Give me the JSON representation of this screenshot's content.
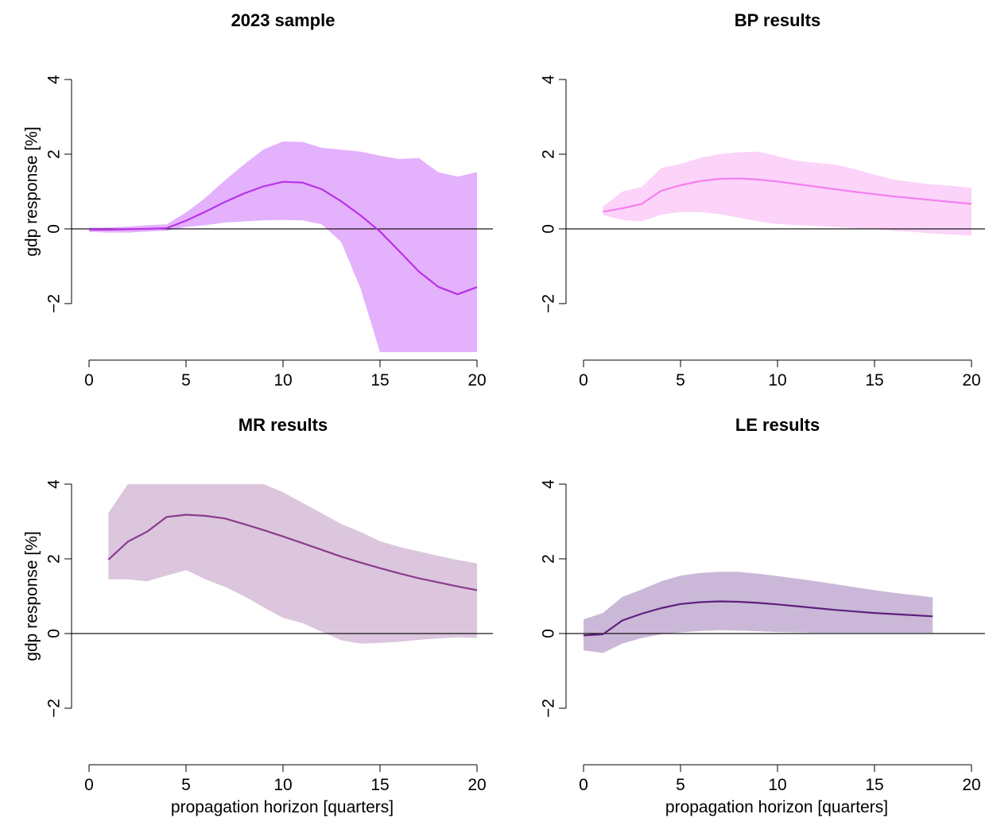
{
  "chart_data": [
    {
      "type": "area",
      "title": "2023 sample",
      "xlabel": "",
      "ylabel": "gdp response [%]",
      "xlim": [
        0,
        20
      ],
      "ylim": [
        -3.3,
        4
      ],
      "xticks": [
        0,
        5,
        10,
        15,
        20
      ],
      "yticks": [
        -2,
        0,
        2,
        4
      ],
      "hline": 0,
      "colors": {
        "line": "#b833e6",
        "band": "#e4b1fc"
      },
      "series": [
        {
          "x": [
            0,
            1,
            2,
            3,
            4,
            5,
            6,
            7,
            8,
            9,
            10,
            11,
            12,
            13,
            14,
            15,
            16,
            17,
            18,
            19,
            20
          ],
          "values": [
            -0.02,
            -0.02,
            -0.01,
            0.0,
            0.02,
            0.22,
            0.46,
            0.72,
            0.95,
            1.14,
            1.26,
            1.24,
            1.06,
            0.74,
            0.36,
            -0.07,
            -0.6,
            -1.14,
            -1.55,
            -1.75,
            -1.56
          ],
          "lower": [
            -0.08,
            -0.1,
            -0.1,
            -0.07,
            -0.05,
            0.05,
            0.1,
            0.17,
            0.2,
            0.23,
            0.24,
            0.23,
            0.12,
            -0.35,
            -1.6,
            -3.3,
            -3.3,
            -3.3,
            -3.3,
            -3.3,
            -3.3
          ],
          "upper": [
            0.03,
            0.04,
            0.06,
            0.1,
            0.12,
            0.44,
            0.83,
            1.3,
            1.73,
            2.13,
            2.34,
            2.33,
            2.17,
            2.12,
            2.07,
            1.96,
            1.87,
            1.9,
            1.52,
            1.4,
            1.52
          ]
        }
      ]
    },
    {
      "type": "area",
      "title": "BP results",
      "xlabel": "",
      "ylabel": "",
      "xlim": [
        0,
        20
      ],
      "ylim": [
        -3.3,
        4
      ],
      "xticks": [
        0,
        5,
        10,
        15,
        20
      ],
      "yticks": [
        -2,
        0,
        2,
        4
      ],
      "hline": 0,
      "colors": {
        "line": "#f47ef0",
        "band": "#fcd3f9"
      },
      "series": [
        {
          "x": [
            1,
            2,
            3,
            4,
            5,
            6,
            7,
            8,
            9,
            10,
            11,
            12,
            13,
            14,
            15,
            16,
            17,
            18,
            19,
            20
          ],
          "values": [
            0.46,
            0.55,
            0.67,
            1.02,
            1.17,
            1.28,
            1.34,
            1.35,
            1.32,
            1.27,
            1.2,
            1.13,
            1.06,
            0.99,
            0.93,
            0.87,
            0.82,
            0.77,
            0.72,
            0.67
          ],
          "lower": [
            0.37,
            0.24,
            0.2,
            0.38,
            0.45,
            0.45,
            0.4,
            0.3,
            0.2,
            0.13,
            0.1,
            0.08,
            0.05,
            0.02,
            0.0,
            -0.05,
            -0.08,
            -0.12,
            -0.15,
            -0.18
          ],
          "upper": [
            0.6,
            1.0,
            1.12,
            1.63,
            1.74,
            1.9,
            2.0,
            2.05,
            2.07,
            1.95,
            1.82,
            1.77,
            1.72,
            1.6,
            1.45,
            1.32,
            1.25,
            1.19,
            1.15,
            1.1
          ]
        }
      ]
    },
    {
      "type": "area",
      "title": "MR results",
      "xlabel": "propagation horizon [quarters]",
      "ylabel": "gdp response [%]",
      "xlim": [
        0,
        20
      ],
      "ylim": [
        -3.3,
        4
      ],
      "xticks": [
        0,
        5,
        10,
        15,
        20
      ],
      "yticks": [
        -2,
        0,
        2,
        4
      ],
      "hline": 0,
      "colors": {
        "line": "#8c3b8c",
        "band": "#dbc6dd"
      },
      "series": [
        {
          "x": [
            1,
            2,
            3,
            4,
            5,
            6,
            7,
            8,
            9,
            10,
            11,
            12,
            13,
            14,
            15,
            16,
            17,
            18,
            19,
            20
          ],
          "values": [
            1.98,
            2.46,
            2.73,
            3.12,
            3.18,
            3.15,
            3.08,
            2.93,
            2.77,
            2.6,
            2.42,
            2.24,
            2.06,
            1.9,
            1.75,
            1.61,
            1.48,
            1.37,
            1.26,
            1.16
          ],
          "lower": [
            1.45,
            1.45,
            1.4,
            1.55,
            1.7,
            1.45,
            1.25,
            1.0,
            0.7,
            0.42,
            0.28,
            0.05,
            -0.18,
            -0.27,
            -0.25,
            -0.22,
            -0.17,
            -0.13,
            -0.1,
            -0.12
          ],
          "upper": [
            3.23,
            4.0,
            4.53,
            4.91,
            5.15,
            5.07,
            4.75,
            4.4,
            4.08,
            3.78,
            3.5,
            3.22,
            2.93,
            2.72,
            2.47,
            2.32,
            2.2,
            2.08,
            1.97,
            1.88
          ]
        }
      ]
    },
    {
      "type": "area",
      "title": "LE results",
      "xlabel": "propagation horizon [quarters]",
      "ylabel": "",
      "xlim": [
        0,
        20
      ],
      "ylim": [
        -3.3,
        4
      ],
      "xticks": [
        0,
        5,
        10,
        15,
        20
      ],
      "yticks": [
        -2,
        0,
        2,
        4
      ],
      "hline": 0,
      "colors": {
        "line": "#5e1f7d",
        "band": "#cbb8d8"
      },
      "series": [
        {
          "x": [
            0,
            1,
            2,
            3,
            4,
            5,
            6,
            7,
            8,
            9,
            10,
            11,
            12,
            13,
            14,
            15,
            16,
            17,
            18
          ],
          "values": [
            -0.05,
            -0.02,
            0.35,
            0.53,
            0.68,
            0.79,
            0.84,
            0.86,
            0.85,
            0.82,
            0.78,
            0.73,
            0.68,
            0.63,
            0.59,
            0.55,
            0.52,
            0.49,
            0.46
          ],
          "lower": [
            -0.45,
            -0.52,
            -0.27,
            -0.12,
            -0.02,
            0.03,
            0.07,
            0.09,
            0.08,
            0.06,
            0.04,
            0.03,
            0.02,
            0.02,
            0.02,
            0.02,
            0.02,
            0.02,
            0.02
          ],
          "upper": [
            0.38,
            0.55,
            0.98,
            1.18,
            1.4,
            1.55,
            1.62,
            1.65,
            1.65,
            1.6,
            1.54,
            1.47,
            1.4,
            1.32,
            1.24,
            1.16,
            1.09,
            1.03,
            0.97
          ]
        }
      ]
    }
  ]
}
